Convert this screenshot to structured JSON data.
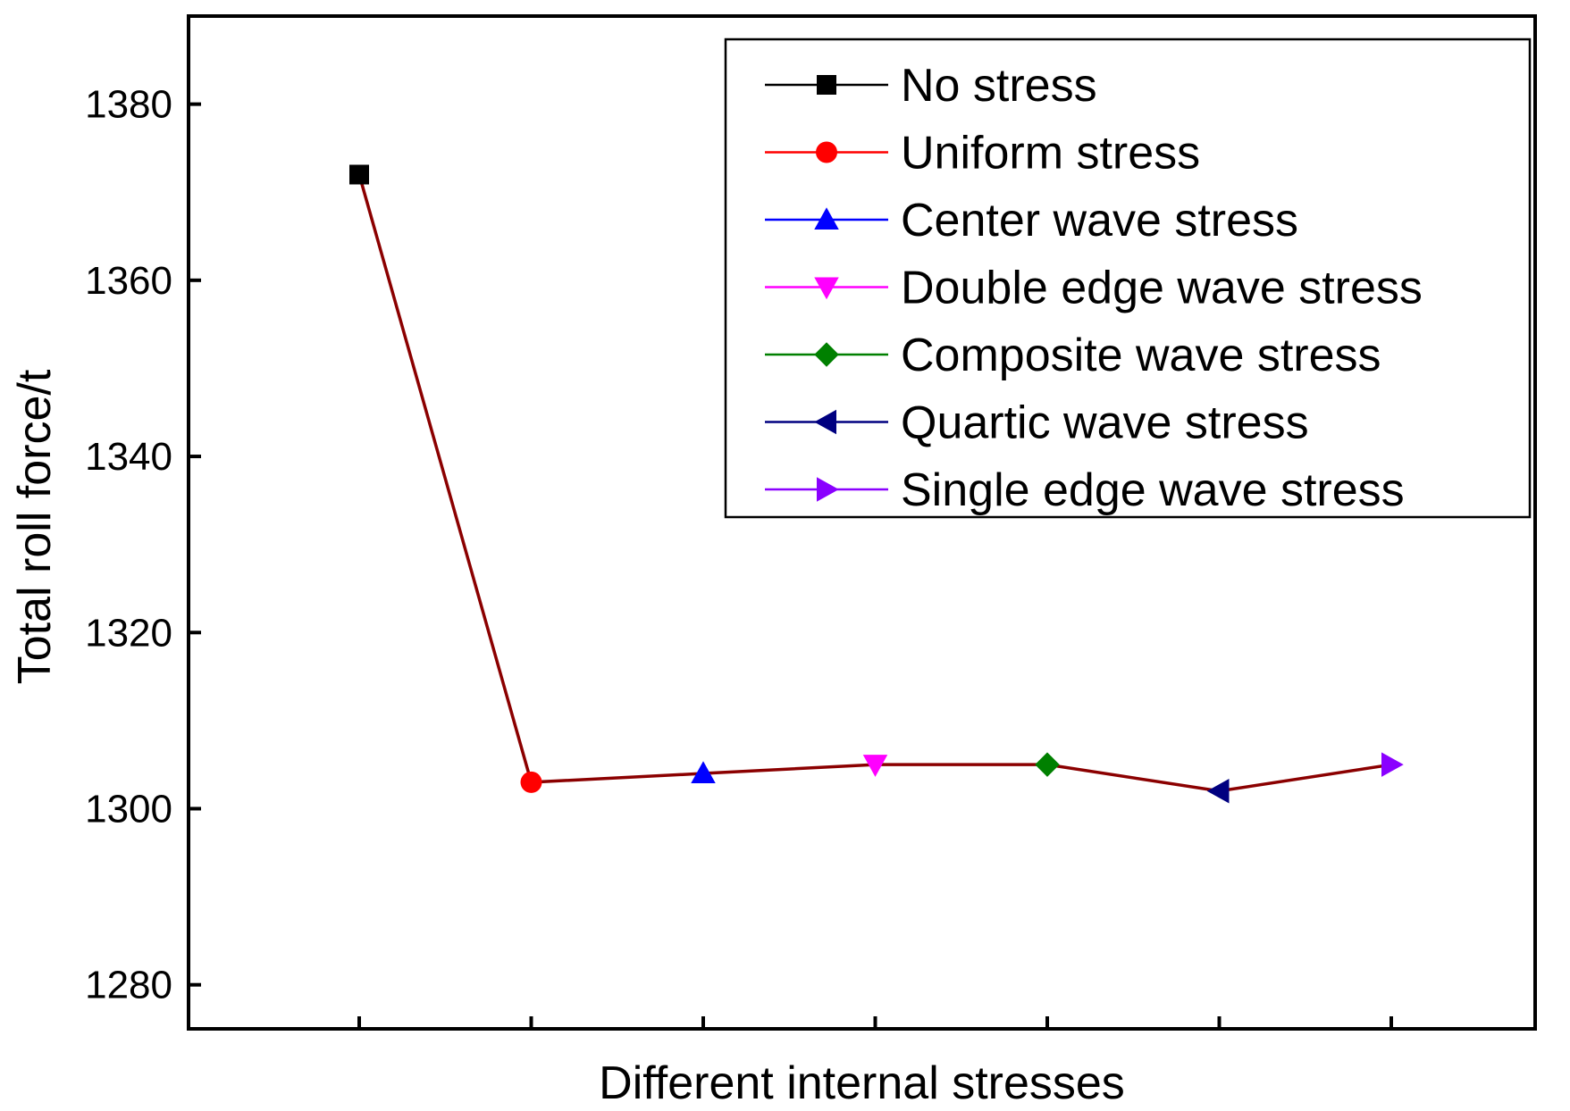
{
  "chart_data": {
    "type": "line",
    "title": "",
    "xlabel": "Different internal stresses",
    "ylabel": "Total roll force/t",
    "ylim": [
      1275,
      1390
    ],
    "yticks": [
      1280,
      1300,
      1320,
      1340,
      1360,
      1380
    ],
    "categories": [
      "No stress",
      "Uniform stress",
      "Center wave stress",
      "Double edge wave stress",
      "Composite wave stress",
      "Quartic wave stress",
      "Single edge wave stress"
    ],
    "values": [
      1372,
      1303,
      1304,
      1305,
      1305,
      1302,
      1305
    ],
    "line_color": "#8b0000",
    "legend_position": "top-right",
    "grid": false,
    "series": [
      {
        "name": "No stress",
        "value": 1372,
        "marker": "square",
        "color": "#000000"
      },
      {
        "name": "Uniform stress",
        "value": 1303,
        "marker": "circle",
        "color": "#ff0000"
      },
      {
        "name": "Center wave stress",
        "value": 1304,
        "marker": "triangle-up",
        "color": "#0000ff"
      },
      {
        "name": "Double edge wave stress",
        "value": 1305,
        "marker": "triangle-down",
        "color": "#ff00ff"
      },
      {
        "name": "Composite wave stress",
        "value": 1305,
        "marker": "diamond",
        "color": "#008000"
      },
      {
        "name": "Quartic wave stress",
        "value": 1302,
        "marker": "triangle-left",
        "color": "#000080"
      },
      {
        "name": "Single edge wave stress",
        "value": 1305,
        "marker": "triangle-right",
        "color": "#8a00ff"
      }
    ]
  }
}
